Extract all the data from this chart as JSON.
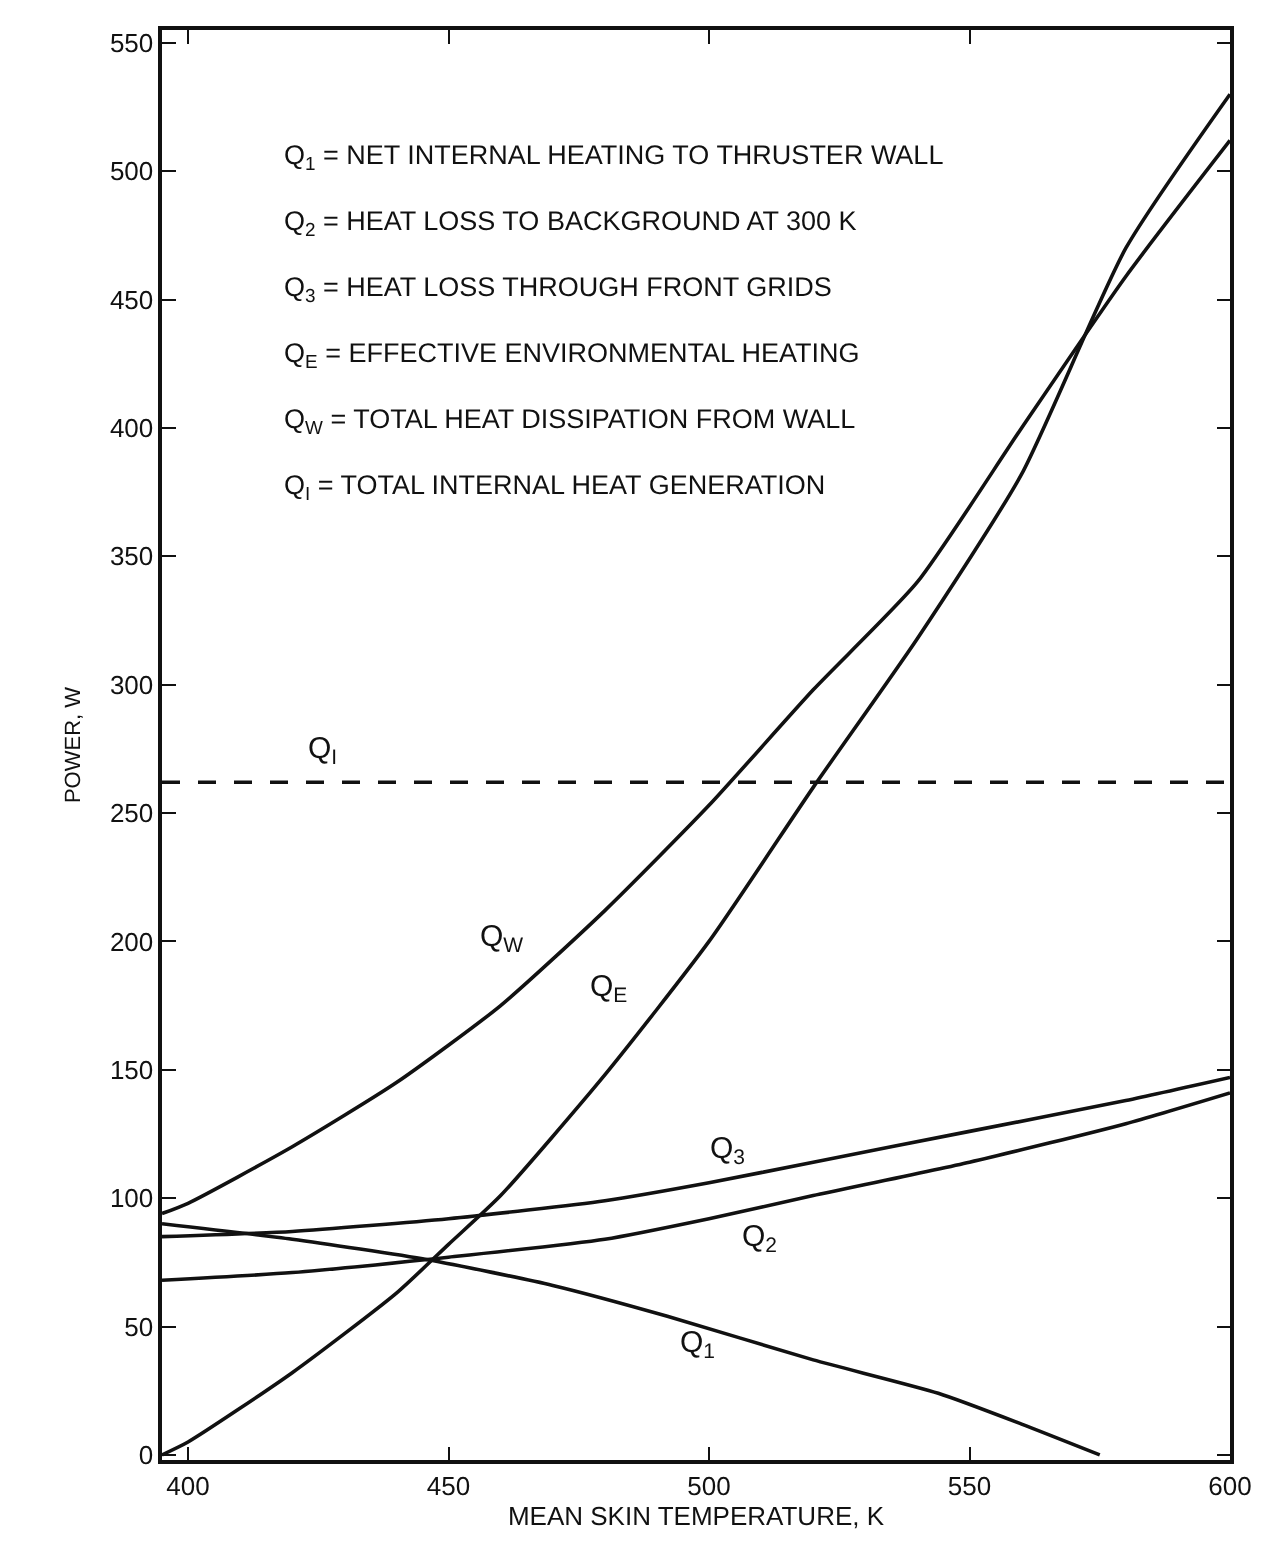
{
  "chart_data": {
    "type": "line",
    "xlabel": "MEAN SKIN TEMPERATURE, K",
    "ylabel": "POWER, W",
    "xlim": [
      395,
      600
    ],
    "ylim": [
      -2,
      555
    ],
    "xticks": [
      400,
      450,
      500,
      550,
      600
    ],
    "yticks": [
      0,
      50,
      100,
      150,
      200,
      250,
      300,
      350,
      400,
      450,
      500,
      550
    ],
    "grid": false,
    "legend": false,
    "marker": "none",
    "line_style": "solid",
    "series": [
      {
        "name": "Q$_{W}$",
        "color": "#111111",
        "x": [
          395,
          400,
          420,
          440,
          460,
          480,
          500,
          520,
          540,
          560,
          580,
          600
        ],
        "values": [
          94,
          98,
          120,
          145,
          175,
          212,
          253,
          298,
          340,
          400,
          459,
          512
        ]
      },
      {
        "name": "Q$_{E}$",
        "color": "#111111",
        "x": [
          395,
          400,
          420,
          440,
          450,
          460,
          480,
          500,
          520,
          540,
          560,
          580,
          600
        ],
        "values": [
          0,
          5,
          32,
          63,
          82,
          101,
          148,
          200,
          260,
          318,
          382,
          470,
          530
        ]
      },
      {
        "name": "Q$_{3}$",
        "color": "#111111",
        "x": [
          395,
          420,
          450,
          480,
          500,
          520,
          550,
          580,
          600
        ],
        "values": [
          85,
          87,
          92,
          99,
          106,
          114,
          126,
          138,
          147
        ]
      },
      {
        "name": "Q$_{2}$",
        "color": "#111111",
        "x": [
          395,
          420,
          450,
          480,
          500,
          520,
          550,
          580,
          600
        ],
        "values": [
          68,
          71,
          77,
          84,
          92,
          101,
          114,
          129,
          141
        ]
      },
      {
        "name": "Q$_{1}$",
        "color": "#111111",
        "x": [
          395,
          420,
          446,
          470,
          492,
          520,
          544,
          560,
          575
        ],
        "values": [
          90,
          84,
          76,
          66,
          54,
          37,
          24,
          12,
          0
        ]
      }
    ],
    "ref_lines": [
      {
        "axis": "y",
        "value": 262,
        "label": "Q$_{I}$",
        "line_style": "dashed",
        "color": "#111111"
      }
    ],
    "annotations": [
      "Q$_{1}$ = NET INTERNAL HEATING TO THRUSTER WALL",
      "Q$_{2}$ = HEAT LOSS TO BACKGROUND AT 300 K",
      "Q$_{3}$ = HEAT LOSS THROUGH FRONT GRIDS",
      "Q$_{E}$ = EFFECTIVE ENVIRONMENTAL HEATING",
      "Q$_{W}$ = TOTAL HEAT DISSIPATION FROM WALL",
      "Q$_{I}$ = TOTAL INTERNAL HEAT GENERATION"
    ]
  }
}
